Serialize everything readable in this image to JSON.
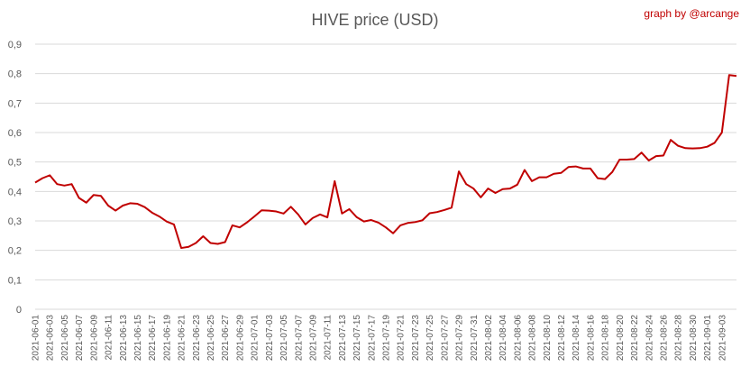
{
  "chart_data": {
    "type": "line",
    "title": "HIVE price (USD)",
    "credit": "graph by @arcange",
    "xlabel": "",
    "ylabel": "",
    "ylim": [
      0,
      0.9
    ],
    "yticks": [
      "0",
      "0,1",
      "0,2",
      "0,3",
      "0,4",
      "0,5",
      "0,6",
      "0,7",
      "0,8",
      "0,9"
    ],
    "grid": true,
    "line_color": "#c00000",
    "grid_color": "#d9d9d9",
    "x_labels": [
      "2021-06-01",
      "2021-06-03",
      "2021-06-05",
      "2021-06-07",
      "2021-06-09",
      "2021-06-11",
      "2021-06-13",
      "2021-06-15",
      "2021-06-17",
      "2021-06-19",
      "2021-06-21",
      "2021-06-23",
      "2021-06-25",
      "2021-06-27",
      "2021-06-29",
      "2021-07-01",
      "2021-07-03",
      "2021-07-05",
      "2021-07-07",
      "2021-07-09",
      "2021-07-11",
      "2021-07-13",
      "2021-07-15",
      "2021-07-17",
      "2021-07-19",
      "2021-07-21",
      "2021-07-23",
      "2021-07-25",
      "2021-07-27",
      "2021-07-29",
      "2021-07-31",
      "2021-08-02",
      "2021-08-04",
      "2021-08-06",
      "2021-08-08",
      "2021-08-10",
      "2021-08-12",
      "2021-08-14",
      "2021-08-16",
      "2021-08-18",
      "2021-08-20",
      "2021-08-22",
      "2021-08-24",
      "2021-08-26",
      "2021-08-28",
      "2021-08-30",
      "2021-09-01",
      "2021-09-03"
    ],
    "series": [
      {
        "values": [
          0.43,
          0.445,
          0.455,
          0.425,
          0.42,
          0.425,
          0.378,
          0.362,
          0.388,
          0.385,
          0.352,
          0.335,
          0.352,
          0.36,
          0.358,
          0.347,
          0.328,
          0.315,
          0.298,
          0.288,
          0.208,
          0.212,
          0.225,
          0.248,
          0.225,
          0.222,
          0.228,
          0.285,
          0.278,
          0.295,
          0.315,
          0.336,
          0.335,
          0.332,
          0.325,
          0.348,
          0.322,
          0.288,
          0.31,
          0.322,
          0.312,
          0.435,
          0.325,
          0.34,
          0.313,
          0.298,
          0.303,
          0.294,
          0.278,
          0.258,
          0.285,
          0.293,
          0.296,
          0.302,
          0.326,
          0.33,
          0.337,
          0.345,
          0.468,
          0.425,
          0.41,
          0.38,
          0.41,
          0.395,
          0.408,
          0.41,
          0.423,
          0.473,
          0.435,
          0.448,
          0.448,
          0.46,
          0.463,
          0.483,
          0.485,
          0.478,
          0.478,
          0.445,
          0.442,
          0.466,
          0.508,
          0.508,
          0.51,
          0.532,
          0.505,
          0.52,
          0.522,
          0.575,
          0.555,
          0.547,
          0.546,
          0.547,
          0.552,
          0.565,
          0.6,
          0.795,
          0.792
        ]
      }
    ]
  }
}
